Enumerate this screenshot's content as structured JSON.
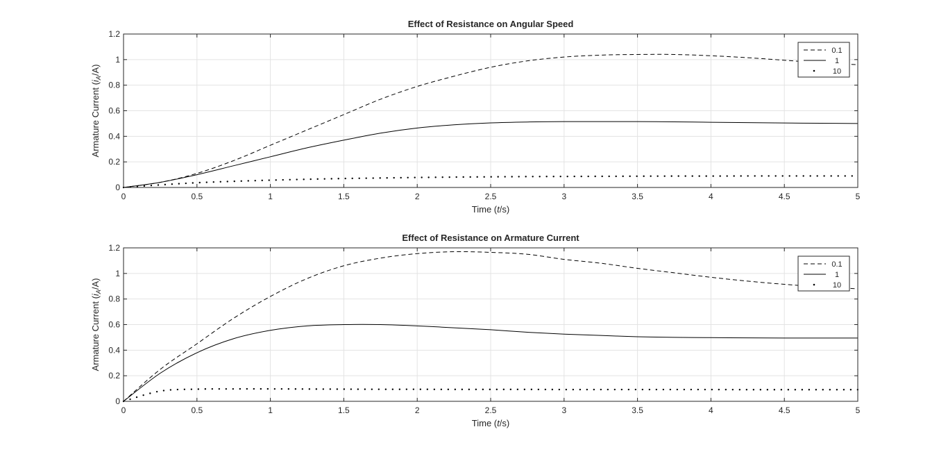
{
  "chart_data": [
    {
      "type": "line",
      "title": "Effect of Resistance on Angular Speed",
      "xlabel": "Time (t/s)",
      "xlabel_parts": {
        "pre": "Time (",
        "italic": "t",
        "post": "/s)"
      },
      "ylabel": "Armature Current (i_A/A)",
      "ylabel_parts": {
        "pre": "Armature Current (",
        "italic": "i",
        "sub": "A",
        "post": "/A)"
      },
      "xlim": [
        0,
        5
      ],
      "ylim": [
        0,
        1.2
      ],
      "xticks": [
        "0",
        "0.5",
        "1",
        "1.5",
        "2",
        "2.5",
        "3",
        "3.5",
        "4",
        "4.5",
        "5"
      ],
      "yticks": [
        "0",
        "0.2",
        "0.4",
        "0.6",
        "0.8",
        "1",
        "1.2"
      ],
      "grid": true,
      "legend_position": "top-right",
      "x": [
        0,
        0.25,
        0.5,
        0.75,
        1,
        1.25,
        1.5,
        1.75,
        2,
        2.25,
        2.5,
        2.75,
        3,
        3.25,
        3.5,
        3.75,
        4,
        4.25,
        4.5,
        4.75,
        5
      ],
      "series": [
        {
          "name": "0.1",
          "style": "dashed",
          "values": [
            0,
            0.04,
            0.11,
            0.21,
            0.33,
            0.45,
            0.57,
            0.69,
            0.79,
            0.87,
            0.94,
            0.99,
            1.02,
            1.035,
            1.04,
            1.04,
            1.03,
            1.015,
            0.995,
            0.975,
            0.96
          ]
        },
        {
          "name": "1",
          "style": "solid",
          "values": [
            0,
            0.04,
            0.1,
            0.17,
            0.24,
            0.31,
            0.37,
            0.425,
            0.465,
            0.49,
            0.505,
            0.512,
            0.515,
            0.515,
            0.515,
            0.513,
            0.51,
            0.507,
            0.504,
            0.502,
            0.5
          ]
        },
        {
          "name": "10",
          "style": "dotted",
          "values": [
            0,
            0.02,
            0.037,
            0.048,
            0.057,
            0.064,
            0.07,
            0.074,
            0.078,
            0.081,
            0.083,
            0.085,
            0.086,
            0.087,
            0.088,
            0.089,
            0.089,
            0.09,
            0.09,
            0.09,
            0.09
          ]
        }
      ]
    },
    {
      "type": "line",
      "title": "Effect of Resistance on Armature Current",
      "xlabel": "Time (t/s)",
      "xlabel_parts": {
        "pre": "Time (",
        "italic": "t",
        "post": "/s)"
      },
      "ylabel": "Armature Current (i_A/A)",
      "ylabel_parts": {
        "pre": "Armature Current (",
        "italic": "i",
        "sub": "A",
        "post": "/A)"
      },
      "xlim": [
        0,
        5
      ],
      "ylim": [
        0,
        1.2
      ],
      "xticks": [
        "0",
        "0.5",
        "1",
        "1.5",
        "2",
        "2.5",
        "3",
        "3.5",
        "4",
        "4.5",
        "5"
      ],
      "yticks": [
        "0",
        "0.2",
        "0.4",
        "0.6",
        "0.8",
        "1",
        "1.2"
      ],
      "grid": true,
      "legend_position": "top-right",
      "x": [
        0,
        0.25,
        0.5,
        0.75,
        1,
        1.25,
        1.5,
        1.75,
        2,
        2.25,
        2.5,
        2.75,
        3,
        3.25,
        3.5,
        3.75,
        4,
        4.25,
        4.5,
        4.75,
        5
      ],
      "series": [
        {
          "name": "0.1",
          "style": "dashed",
          "values": [
            0,
            0.25,
            0.45,
            0.65,
            0.82,
            0.96,
            1.06,
            1.12,
            1.155,
            1.17,
            1.165,
            1.15,
            1.11,
            1.08,
            1.04,
            1.005,
            0.97,
            0.94,
            0.915,
            0.895,
            0.88
          ]
        },
        {
          "name": "1",
          "style": "solid",
          "values": [
            0,
            0.22,
            0.38,
            0.49,
            0.555,
            0.59,
            0.6,
            0.6,
            0.59,
            0.575,
            0.56,
            0.54,
            0.525,
            0.515,
            0.505,
            0.5,
            0.498,
            0.496,
            0.495,
            0.495,
            0.495
          ]
        },
        {
          "name": "10",
          "style": "dotted",
          "values": [
            0,
            0.08,
            0.095,
            0.097,
            0.097,
            0.096,
            0.095,
            0.094,
            0.094,
            0.093,
            0.093,
            0.093,
            0.092,
            0.092,
            0.092,
            0.092,
            0.092,
            0.091,
            0.091,
            0.091,
            0.091
          ]
        }
      ]
    }
  ]
}
